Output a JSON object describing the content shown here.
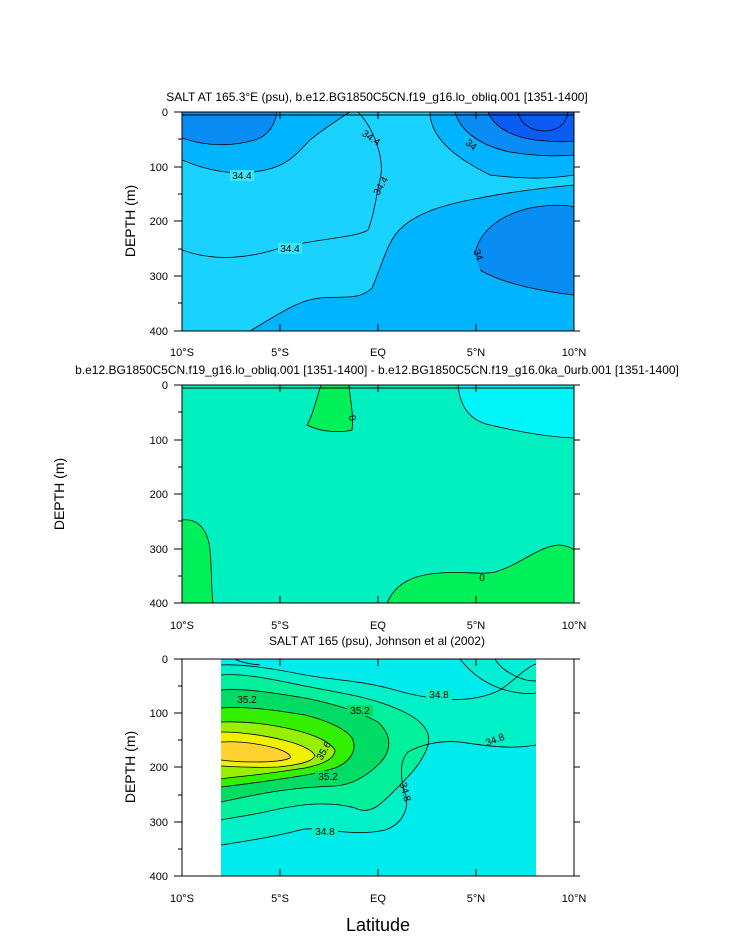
{
  "chart_data": [
    {
      "type": "contour",
      "title": "SALT AT 165.3°E (psu), b.e12.BG1850C5CN.f19_g16.lo_obliq.001 [1351-1400]",
      "xlabel": "",
      "ylabel": "DEPTH (m)",
      "xlim": [
        -10,
        10
      ],
      "ylim": [
        400,
        0
      ],
      "x_tick_labels": [
        "10°S",
        "5°S",
        "EQ",
        "5°N",
        "10°N"
      ],
      "y_tick_labels": [
        "0",
        "100",
        "200",
        "300",
        "400"
      ],
      "contour_labels": [
        "34.4",
        "34.4",
        "34.4",
        "34.4",
        "34",
        "34"
      ],
      "colors": [
        "#0a5cf5",
        "#0a8cf5",
        "#00b4ff",
        "#1ad2ff",
        "#3ce6ff"
      ]
    },
    {
      "type": "contour",
      "title": "b.e12.BG1850C5CN.f19_g16.lo_obliq.001 [1351-1400] - b.e12.BG1850C5CN.f19_g16.0ka_0urb.001 [1351-1400]",
      "xlabel": "",
      "ylabel": "DEPTH (m)",
      "xlim": [
        -10,
        10
      ],
      "ylim": [
        400,
        0
      ],
      "x_tick_labels": [
        "10°S",
        "5°S",
        "EQ",
        "5°N",
        "10°N"
      ],
      "y_tick_labels": [
        "0",
        "100",
        "200",
        "300",
        "400"
      ],
      "contour_labels": [
        "0",
        "0"
      ],
      "colors": [
        "#00f5fa",
        "#00f0c0",
        "#00f05a"
      ]
    },
    {
      "type": "contour",
      "title": "SALT AT 165 (psu), Johnson et al (2002)",
      "xlabel": "Latitude",
      "ylabel": "DEPTH (m)",
      "xlim": [
        -10,
        10
      ],
      "ylim": [
        400,
        0
      ],
      "x_tick_labels": [
        "10°S",
        "5°S",
        "EQ",
        "5°N",
        "10°N"
      ],
      "y_tick_labels": [
        "0",
        "100",
        "200",
        "300",
        "400"
      ],
      "contour_labels": [
        "35.2",
        "35.2",
        "35.6",
        "35.2",
        "34.8",
        "34.8",
        "34.8",
        "34.8"
      ],
      "colors": [
        "#00ebeb",
        "#00f0c8",
        "#00f09b",
        "#00dc64",
        "#32f000",
        "#96f000",
        "#f0f000",
        "#ffd232"
      ]
    }
  ]
}
